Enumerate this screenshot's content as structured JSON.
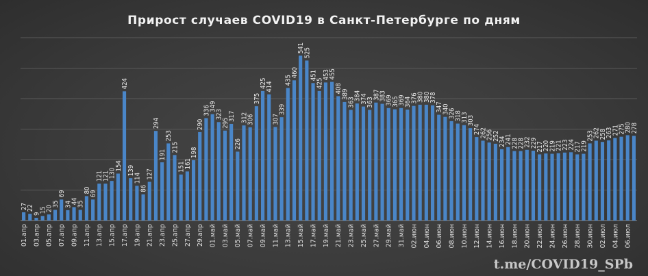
{
  "chart_data": {
    "type": "bar",
    "title": "Прирост  случаев  COVID19  в  Санкт-Петербурге   по  дням",
    "xlabel": "",
    "ylabel": "",
    "ylim": [
      0,
      600
    ],
    "grid": true,
    "legend": "none",
    "bar_color": "#4a86c8",
    "categories": [
      "01.апр",
      "02.апр",
      "03.апр",
      "04.апр",
      "05.апр",
      "06.апр",
      "07.апр",
      "08.апр",
      "09.апр",
      "10.апр",
      "11.апр",
      "12.апр",
      "13.апр",
      "14.апр",
      "15.апр",
      "16.апр",
      "17.апр",
      "18.апр",
      "19.апр",
      "20.апр",
      "21.апр",
      "22.апр",
      "23.апр",
      "24.апр",
      "25.апр",
      "26.апр",
      "27.апр",
      "28.апр",
      "29.апр",
      "30.апр",
      "01.май",
      "02.май",
      "03.май",
      "04.май",
      "05.май",
      "06.май",
      "07.май",
      "08.май",
      "09.май",
      "10.май",
      "11.май",
      "12.май",
      "13.май",
      "14.май",
      "15.май",
      "16.май",
      "17.май",
      "18.май",
      "19.май",
      "20.май",
      "21.май",
      "22.май",
      "23.май",
      "24.май",
      "25.май",
      "26.май",
      "27.май",
      "28.май",
      "29.май",
      "30.май",
      "31.май",
      "01.июн",
      "02.июн",
      "03.июн",
      "04.июн",
      "05.июн",
      "06.июн",
      "07.июн",
      "08.июн",
      "09.июн",
      "10.июн",
      "11.июн",
      "12.июн",
      "13.июн",
      "14.июн",
      "15.июн",
      "16.июн",
      "17.июн",
      "18.июн",
      "19.июн",
      "20.июн",
      "21.июн",
      "22.июн",
      "23.июн",
      "24.июн",
      "25.июн",
      "26.июн",
      "27.июн",
      "28.июн",
      "29.июн",
      "30.июн",
      "01.июл",
      "02.июл",
      "03.июл",
      "04.июл",
      "05.июл",
      "06.июл",
      "07.июл"
    ],
    "values": [
      27,
      22,
      9,
      15,
      20,
      35,
      69,
      34,
      44,
      35,
      80,
      69,
      121,
      121,
      130,
      154,
      424,
      139,
      114,
      86,
      127,
      294,
      191,
      253,
      215,
      151,
      161,
      198,
      290,
      336,
      349,
      323,
      295,
      317,
      226,
      312,
      306,
      375,
      425,
      414,
      307,
      339,
      435,
      460,
      541,
      525,
      451,
      425,
      453,
      455,
      408,
      389,
      363,
      384,
      374,
      363,
      387,
      383,
      369,
      365,
      369,
      364,
      376,
      380,
      380,
      378,
      347,
      340,
      326,
      318,
      313,
      303,
      274,
      262,
      256,
      252,
      234,
      241,
      228,
      228,
      232,
      229,
      217,
      220,
      219,
      221,
      223,
      224,
      217,
      219,
      253,
      262,
      258,
      263,
      271,
      275,
      280,
      278
    ],
    "xtick_labels": [
      "01.апр",
      "03.апр",
      "05.апр",
      "07.апр",
      "09.апр",
      "11.апр",
      "13.апр",
      "15.апр",
      "17.апр",
      "19.апр",
      "21.апр",
      "23.апр",
      "25.апр",
      "27.апр",
      "29.апр",
      "01.май",
      "03.май",
      "05.май",
      "07.май",
      "09.май",
      "11.май",
      "13.май",
      "15.май",
      "17.май",
      "19.май",
      "21.май",
      "23.май",
      "25.май",
      "27.май",
      "29.май",
      "31.май",
      "02.июн",
      "04.июн",
      "06.июн",
      "08.июн",
      "10.июн",
      "12.июн",
      "14.июн",
      "16.июн",
      "18.июн",
      "20.июн",
      "22.июн",
      "24.июн",
      "26.июн",
      "28.июн",
      "30.июн",
      "02.июл",
      "04.июл",
      "06.июл"
    ]
  },
  "watermark": "t.me/COVID19_SPb"
}
